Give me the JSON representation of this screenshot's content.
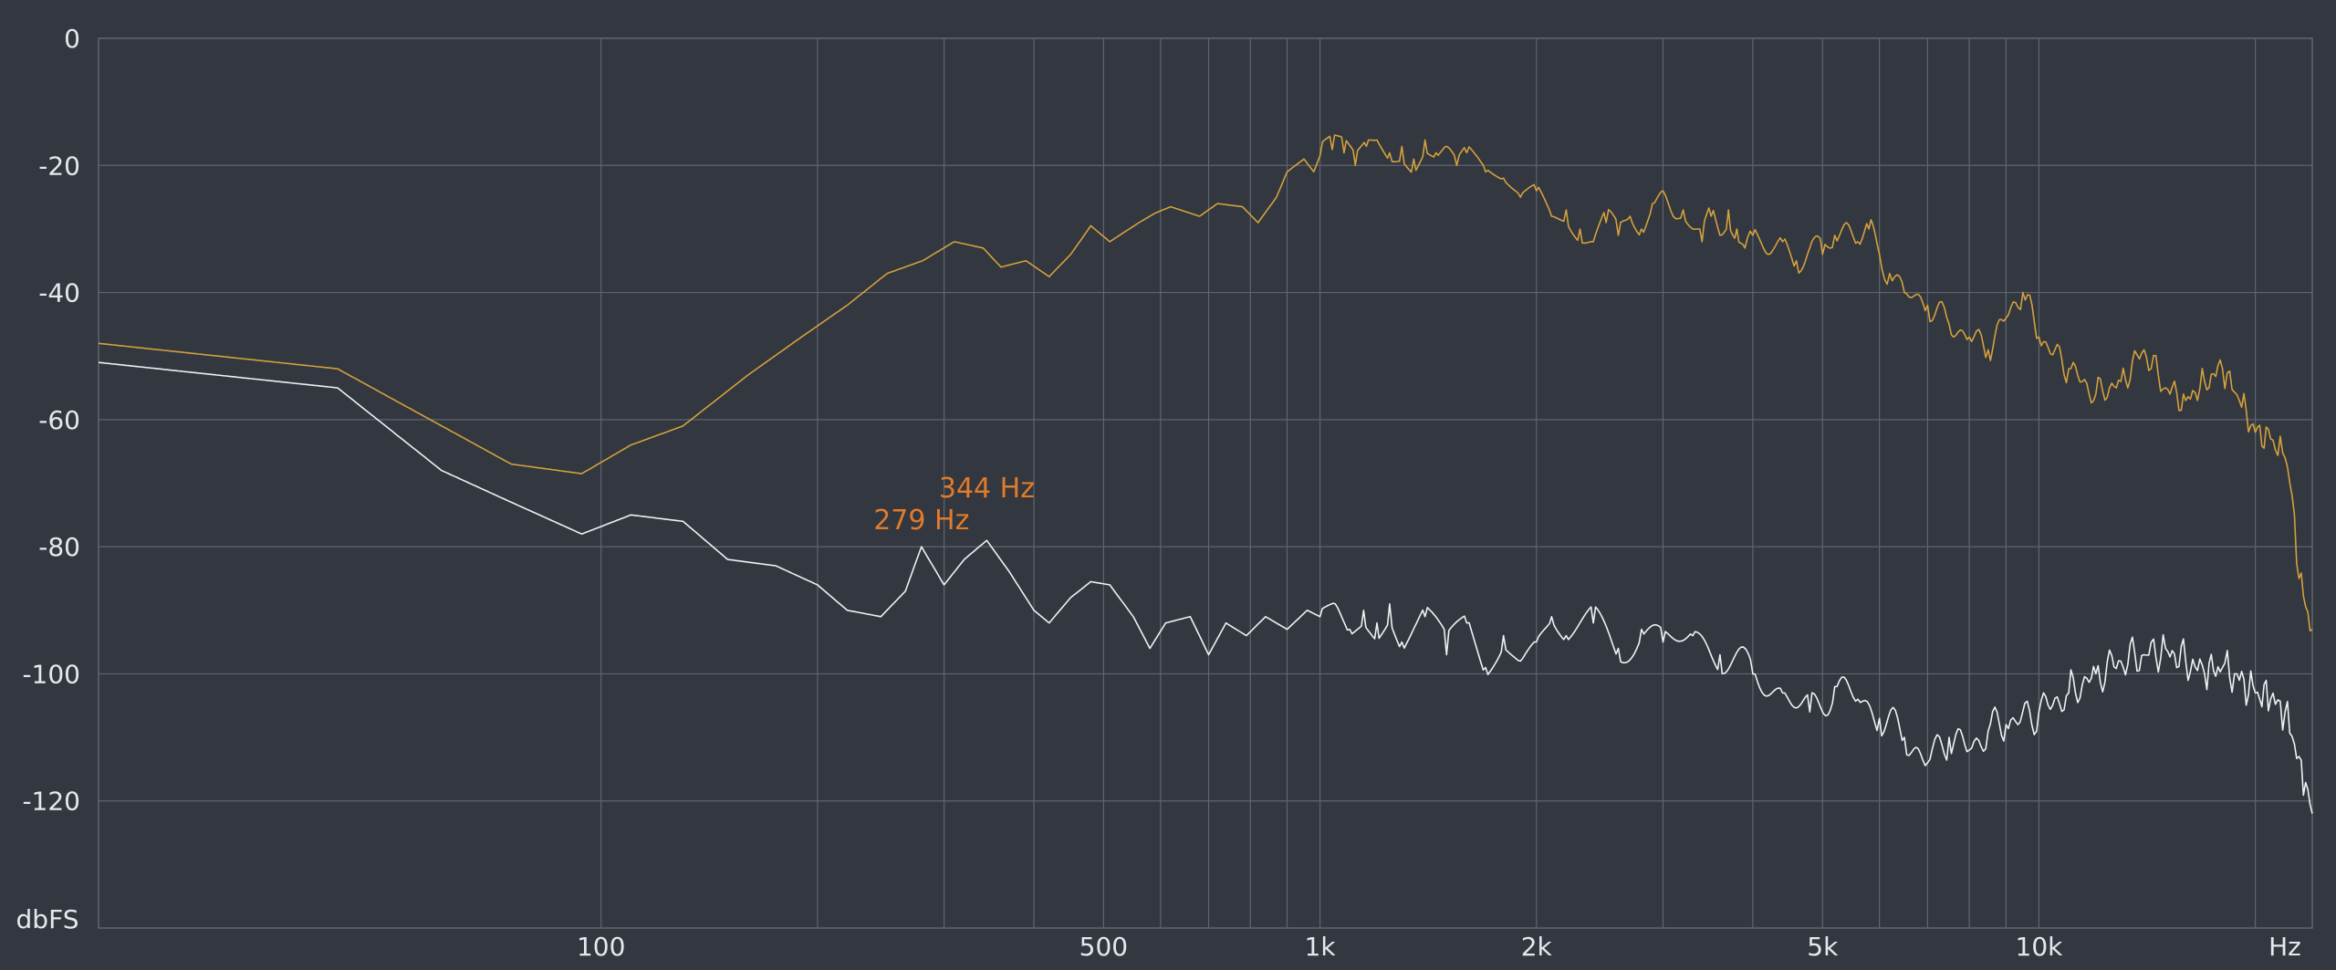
{
  "colors": {
    "background": "#323740",
    "grid": "#5f6670",
    "text": "#e6e8ec",
    "series_gold": "#d4a13c",
    "series_white": "#f0f0f0",
    "peak_label": "#e07b2c"
  },
  "chart_data": {
    "type": "line",
    "x_scale": "log",
    "xlim": [
      20,
      24000
    ],
    "ylim": [
      -140,
      0
    ],
    "grid": true,
    "y_ticks": [
      0,
      -20,
      -40,
      -60,
      -80,
      -100,
      -120
    ],
    "y_tick_labels": [
      "0",
      "-20",
      "-40",
      "-60",
      "-80",
      "-100",
      "-120"
    ],
    "ylabel": "dbFS",
    "xlabel": "Hz",
    "x_gridlines": [
      100,
      200,
      300,
      400,
      500,
      600,
      700,
      800,
      900,
      1000,
      2000,
      3000,
      4000,
      5000,
      6000,
      7000,
      8000,
      9000,
      10000,
      20000
    ],
    "x_tick_labels": [
      {
        "value": 100,
        "label": "100"
      },
      {
        "value": 500,
        "label": "500"
      },
      {
        "value": 1000,
        "label": "1k"
      },
      {
        "value": 2000,
        "label": "2k"
      },
      {
        "value": 5000,
        "label": "5k"
      },
      {
        "value": 10000,
        "label": "10k"
      }
    ],
    "annotations": [
      {
        "label": "279 Hz",
        "x": 279,
        "y": -80
      },
      {
        "label": "344 Hz",
        "x": 344,
        "y": -79
      }
    ],
    "series": [
      {
        "color": "#d4a13c",
        "points": [
          [
            20,
            -48
          ],
          [
            43,
            -52
          ],
          [
            75,
            -67
          ],
          [
            94,
            -68.5
          ],
          [
            110,
            -64
          ],
          [
            130,
            -61
          ],
          [
            160,
            -53
          ],
          [
            190,
            -47
          ],
          [
            220,
            -42
          ],
          [
            250,
            -37
          ],
          [
            280,
            -35
          ],
          [
            310,
            -32
          ],
          [
            340,
            -33
          ],
          [
            360,
            -36
          ],
          [
            390,
            -35
          ],
          [
            420,
            -37.5
          ],
          [
            450,
            -34
          ],
          [
            480,
            -29.5
          ],
          [
            510,
            -32
          ],
          [
            560,
            -29
          ],
          [
            590,
            -27.5
          ],
          [
            620,
            -26.5
          ],
          [
            680,
            -28
          ],
          [
            720,
            -26
          ],
          [
            780,
            -26.5
          ],
          [
            820,
            -29
          ],
          [
            870,
            -25
          ],
          [
            900,
            -21
          ],
          [
            950,
            -19
          ],
          [
            980,
            -21
          ],
          [
            1000,
            -18.5
          ],
          [
            1040,
            -17.5
          ],
          [
            1080,
            -18
          ],
          [
            1120,
            -20
          ],
          [
            1160,
            -17
          ],
          [
            1200,
            -16
          ],
          [
            1250,
            -18
          ],
          [
            1300,
            -17
          ],
          [
            1350,
            -19
          ],
          [
            1400,
            -16
          ],
          [
            1450,
            -18
          ],
          [
            1500,
            -17
          ],
          [
            1550,
            -20
          ],
          [
            1600,
            -18
          ],
          [
            1700,
            -21
          ],
          [
            1800,
            -22
          ],
          [
            1900,
            -25
          ],
          [
            2000,
            -24
          ],
          [
            2100,
            -28
          ],
          [
            2200,
            -27
          ],
          [
            2300,
            -30
          ],
          [
            2400,
            -32
          ],
          [
            2500,
            -29
          ],
          [
            2600,
            -31
          ],
          [
            2700,
            -28
          ],
          [
            2800,
            -30
          ],
          [
            2900,
            -26
          ],
          [
            3000,
            -24
          ],
          [
            3100,
            -28
          ],
          [
            3200,
            -27
          ],
          [
            3300,
            -30
          ],
          [
            3400,
            -32
          ],
          [
            3500,
            -28
          ],
          [
            3600,
            -31
          ],
          [
            3700,
            -27
          ],
          [
            3800,
            -30
          ],
          [
            3900,
            -33
          ],
          [
            4000,
            -31
          ],
          [
            4200,
            -34
          ],
          [
            4400,
            -32
          ],
          [
            4600,
            -35
          ],
          [
            4800,
            -33
          ],
          [
            5000,
            -34
          ],
          [
            5200,
            -31
          ],
          [
            5400,
            -29
          ],
          [
            5600,
            -32
          ],
          [
            5800,
            -30
          ],
          [
            6000,
            -34
          ],
          [
            6200,
            -37
          ],
          [
            6500,
            -40
          ],
          [
            7000,
            -42
          ],
          [
            7500,
            -45
          ],
          [
            8000,
            -47
          ],
          [
            8500,
            -49
          ],
          [
            9000,
            -44
          ],
          [
            9500,
            -40
          ],
          [
            10000,
            -47
          ],
          [
            11000,
            -52
          ],
          [
            12000,
            -56
          ],
          [
            13000,
            -54
          ],
          [
            14000,
            -49
          ],
          [
            15000,
            -55
          ],
          [
            16000,
            -57
          ],
          [
            17000,
            -54
          ],
          [
            18000,
            -52
          ],
          [
            19000,
            -57
          ],
          [
            20000,
            -62
          ],
          [
            21000,
            -63
          ],
          [
            22000,
            -66
          ],
          [
            22500,
            -72
          ],
          [
            23000,
            -85
          ],
          [
            24000,
            -93
          ]
        ]
      },
      {
        "color": "#f0f0f0",
        "points": [
          [
            20,
            -51
          ],
          [
            43,
            -55
          ],
          [
            60,
            -68
          ],
          [
            75,
            -73
          ],
          [
            94,
            -78
          ],
          [
            110,
            -75
          ],
          [
            130,
            -76
          ],
          [
            150,
            -82
          ],
          [
            175,
            -83
          ],
          [
            200,
            -86
          ],
          [
            220,
            -90
          ],
          [
            245,
            -91
          ],
          [
            265,
            -87
          ],
          [
            279,
            -80
          ],
          [
            300,
            -86
          ],
          [
            320,
            -82
          ],
          [
            344,
            -79
          ],
          [
            370,
            -84
          ],
          [
            400,
            -90
          ],
          [
            420,
            -92
          ],
          [
            450,
            -88
          ],
          [
            480,
            -85.5
          ],
          [
            510,
            -86
          ],
          [
            550,
            -91
          ],
          [
            580,
            -96
          ],
          [
            610,
            -92
          ],
          [
            660,
            -91
          ],
          [
            700,
            -97
          ],
          [
            740,
            -92
          ],
          [
            790,
            -94
          ],
          [
            840,
            -91
          ],
          [
            900,
            -93
          ],
          [
            960,
            -90
          ],
          [
            1000,
            -91
          ],
          [
            1050,
            -89
          ],
          [
            1100,
            -93
          ],
          [
            1150,
            -90
          ],
          [
            1200,
            -92
          ],
          [
            1250,
            -89
          ],
          [
            1300,
            -95
          ],
          [
            1400,
            -91
          ],
          [
            1500,
            -97
          ],
          [
            1600,
            -92
          ],
          [
            1700,
            -99
          ],
          [
            1800,
            -94
          ],
          [
            1900,
            -98
          ],
          [
            2000,
            -95
          ],
          [
            2100,
            -91
          ],
          [
            2200,
            -94
          ],
          [
            2400,
            -92
          ],
          [
            2600,
            -96
          ],
          [
            2800,
            -93
          ],
          [
            3000,
            -95
          ],
          [
            3300,
            -94
          ],
          [
            3600,
            -97
          ],
          [
            4000,
            -100
          ],
          [
            4400,
            -103
          ],
          [
            4800,
            -106
          ],
          [
            5200,
            -102
          ],
          [
            5600,
            -104
          ],
          [
            6000,
            -107
          ],
          [
            6500,
            -110
          ],
          [
            7000,
            -114
          ],
          [
            7500,
            -110
          ],
          [
            8000,
            -112
          ],
          [
            8500,
            -109
          ],
          [
            9000,
            -108
          ],
          [
            10000,
            -106
          ],
          [
            11000,
            -103
          ],
          [
            12000,
            -100
          ],
          [
            13000,
            -98
          ],
          [
            14000,
            -97
          ],
          [
            15000,
            -96
          ],
          [
            16000,
            -98
          ],
          [
            17000,
            -100
          ],
          [
            18000,
            -99
          ],
          [
            19000,
            -101
          ],
          [
            20000,
            -103
          ],
          [
            21000,
            -104
          ],
          [
            22000,
            -106
          ],
          [
            23000,
            -113
          ],
          [
            24000,
            -122
          ]
        ]
      }
    ]
  }
}
